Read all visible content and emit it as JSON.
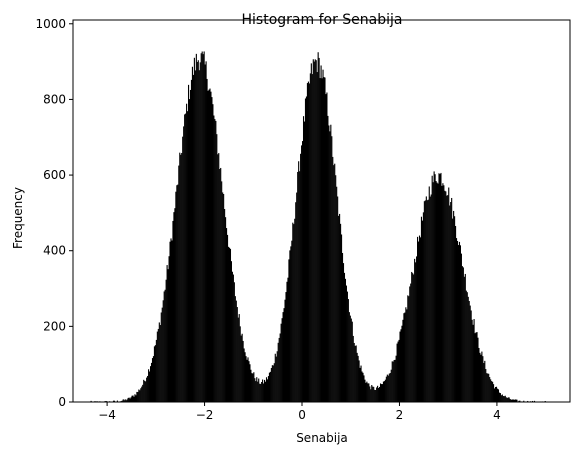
{
  "chart_data": {
    "type": "histogram",
    "title": "Histogram for Senabija",
    "xlabel": "Senabija",
    "ylabel": "Frequency",
    "xlim": [
      -4.7,
      5.5
    ],
    "ylim": [
      0,
      1010
    ],
    "x_ticks": [
      -4,
      -2,
      0,
      2,
      4
    ],
    "y_ticks": [
      0,
      200,
      400,
      600,
      800,
      1000
    ],
    "bar_color": "#000000",
    "background": "#ffffff",
    "grid": false,
    "bins": {
      "range": [
        -4.4,
        5.0
      ],
      "count": 470,
      "peaks": [
        {
          "center": -2.1,
          "height": 910,
          "width": 0.48
        },
        {
          "center": 0.3,
          "height": 900,
          "width": 0.42
        },
        {
          "center": 2.8,
          "height": 600,
          "width": 0.5
        }
      ]
    }
  }
}
